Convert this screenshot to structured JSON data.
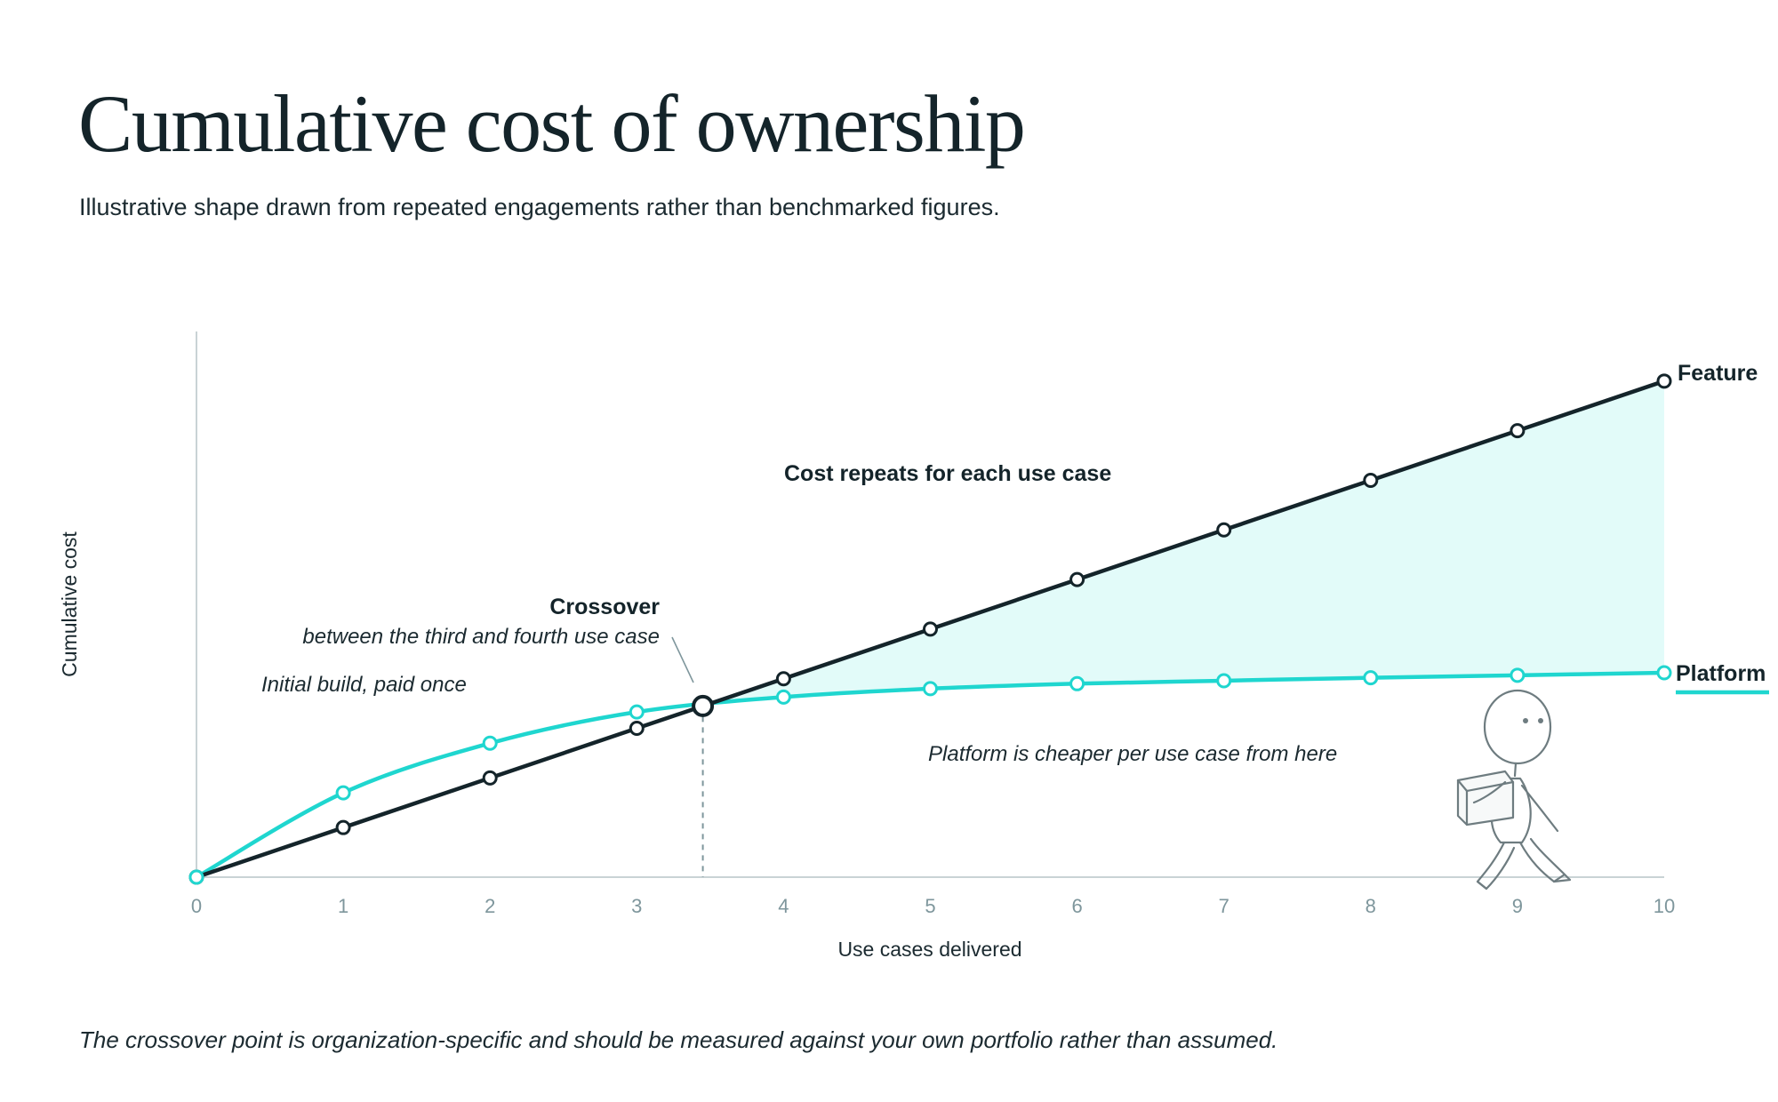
{
  "title": "Cumulative cost of ownership",
  "subtitle": "Illustrative shape drawn from repeated engagements rather than benchmarked figures.",
  "footnote": "The crossover point is organization-specific and should be measured against your own portfolio rather than assumed.",
  "colors": {
    "feature": "#14242a",
    "platform": "#1fd6cf",
    "fill": "#e2fbf9",
    "axis": "#c9d3d5",
    "tick": "#7e969c"
  },
  "chart_data": {
    "type": "line",
    "xlabel": "Use cases delivered",
    "ylabel": "Cumulative cost",
    "x": [
      0,
      1,
      2,
      3,
      4,
      5,
      6,
      7,
      8,
      9,
      10
    ],
    "xlim": [
      0,
      10
    ],
    "ylim": [
      0,
      110
    ],
    "y_ticks_shown": false,
    "grid": false,
    "series": [
      {
        "name": "Feature",
        "values": [
          0,
          10,
          20,
          30,
          40,
          50,
          60,
          70,
          80,
          90,
          100
        ]
      },
      {
        "name": "Platform",
        "values": [
          0,
          17,
          27,
          33.3,
          36.3,
          38,
          39,
          39.6,
          40.2,
          40.7,
          41.2
        ]
      }
    ],
    "crossover": {
      "x": 3.45,
      "y": 34.5
    },
    "annotations": {
      "crossover_title": "Crossover",
      "crossover_detail": "between the third and fourth use case",
      "initial_build": "Initial build, paid once",
      "repeat_cost": "Cost repeats for each use case",
      "cheaper": "Platform is cheaper per use case from here"
    }
  }
}
